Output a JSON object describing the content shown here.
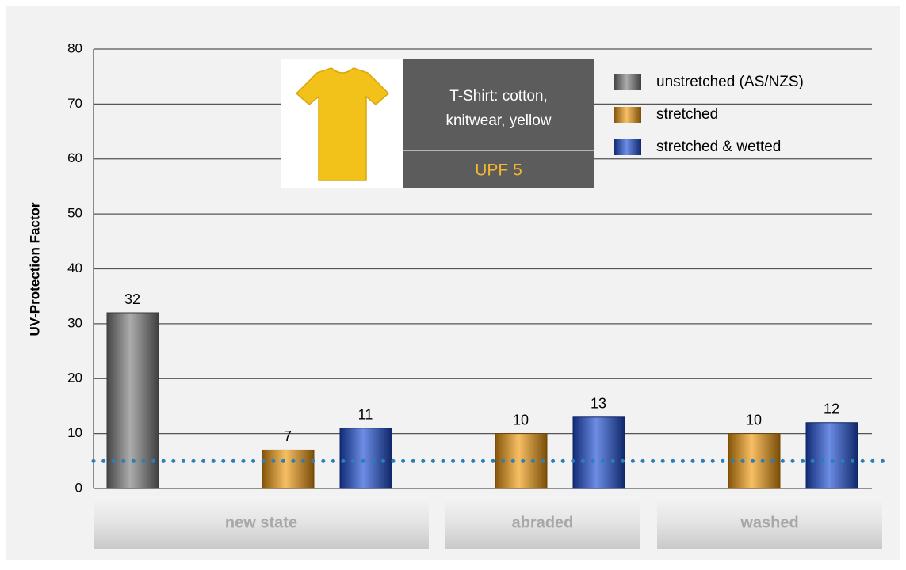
{
  "chart_data": {
    "type": "bar",
    "y_label": "UV-Protection Factor",
    "categories": [
      "new state",
      "abraded",
      "washed"
    ],
    "series": [
      {
        "name": "unstretched (AS/NZS)",
        "color": "#7f7f7f",
        "values": [
          32,
          null,
          null
        ]
      },
      {
        "name": "stretched",
        "color": "#f39c12",
        "values": [
          7,
          10,
          10
        ]
      },
      {
        "name": "stretched & wetted",
        "color": "#1f4fd6",
        "values": [
          11,
          13,
          12
        ]
      }
    ],
    "ylim": [
      0,
      80
    ],
    "yticks": [
      0,
      10,
      20,
      30,
      40,
      50,
      60,
      70,
      80
    ],
    "grid": true,
    "reference_line": {
      "value": 5,
      "color": "#2a7fb8"
    },
    "inset": {
      "lines": [
        "T-Shirt: cotton,",
        "knitwear, yellow"
      ],
      "rating": "UPF 5"
    },
    "legend": "top-right"
  }
}
